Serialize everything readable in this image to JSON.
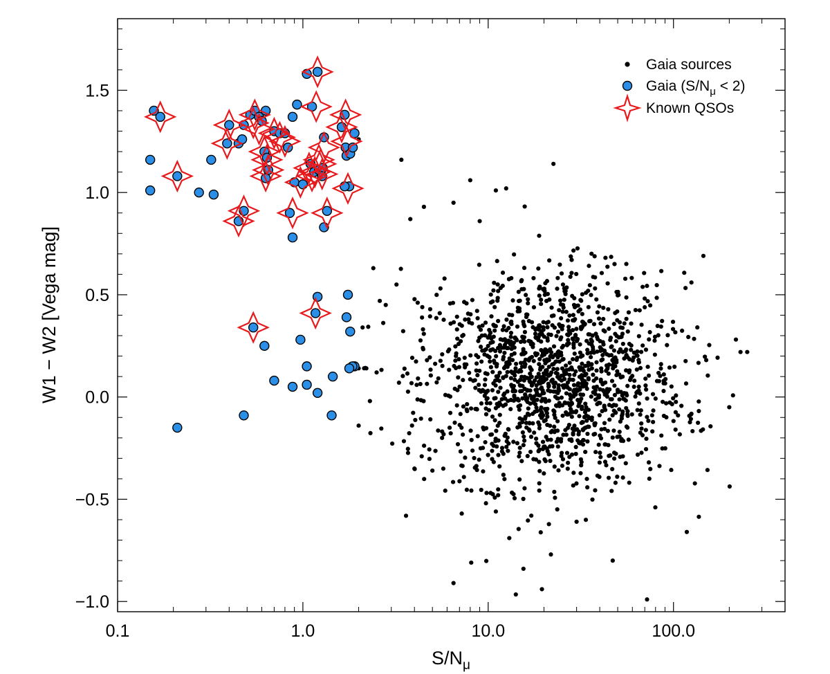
{
  "chart_data": {
    "type": "scatter",
    "xlabel": "S/N",
    "xlabel_sub": "μ",
    "ylabel": "W1 − W2  [Vega mag]",
    "xscale": "log",
    "xlim": [
      0.1,
      400
    ],
    "ylim": [
      -1.05,
      1.85
    ],
    "xticks": [
      {
        "value": 0.1,
        "label": "0.1"
      },
      {
        "value": 1,
        "label": "1.0"
      },
      {
        "value": 10,
        "label": "10.0"
      },
      {
        "value": 100,
        "label": "100.0"
      }
    ],
    "yticks": [
      {
        "value": -1.0,
        "label": "−1.0"
      },
      {
        "value": -0.5,
        "label": "−0.5"
      },
      {
        "value": 0.0,
        "label": "0.0"
      },
      {
        "value": 0.5,
        "label": "0.5"
      },
      {
        "value": 1.0,
        "label": "1.0"
      },
      {
        "value": 1.5,
        "label": "1.5"
      }
    ],
    "grid": false,
    "legend_position": "top-right",
    "legend": [
      {
        "label": "Gaia sources",
        "marker": "black-dot"
      },
      {
        "label": "Gaia (S/N",
        "label_sub": "μ",
        "label_suffix": " < 2)",
        "marker": "blue-circle"
      },
      {
        "label": "Known QSOs",
        "marker": "red-star"
      }
    ],
    "colors": {
      "gaia": "#000000",
      "low_sn_fill": "#2b8fe8",
      "low_sn_edge": "#000000",
      "qso": "#e8191c"
    },
    "series": [
      {
        "name": "Gaia sources",
        "generated": true,
        "count": 1500,
        "x_center_log10": 1.35,
        "x_spread_log10": 0.35,
        "x_min": 2.0,
        "x_max": 250,
        "y_center": 0.08,
        "y_spread": 0.26,
        "points": [
          [
            2.0,
            1.26
          ],
          [
            3.4,
            1.16
          ],
          [
            22.5,
            1.14
          ],
          [
            8.0,
            1.06
          ],
          [
            11.0,
            1.01
          ],
          [
            12.5,
            1.02
          ],
          [
            4.5,
            0.93
          ],
          [
            3.8,
            0.87
          ],
          [
            6.5,
            0.95
          ],
          [
            9.0,
            0.86
          ],
          [
            145,
            0.69
          ],
          [
            125,
            0.56
          ],
          [
            2.4,
            0.63
          ],
          [
            2.6,
            0.47
          ],
          [
            2.8,
            0.45
          ],
          [
            3.2,
            0.55
          ],
          [
            2.1,
            0.34
          ],
          [
            2.2,
            0.14
          ],
          [
            2.0,
            0.14
          ],
          [
            2.5,
            0.12
          ],
          [
            2.3,
            -0.02
          ],
          [
            2.0,
            -0.14
          ],
          [
            3.3,
            0.07
          ],
          [
            4.0,
            -0.35
          ],
          [
            5.0,
            -0.36
          ],
          [
            230,
            0.22
          ],
          [
            250,
            0.22
          ],
          [
            200,
            -0.05
          ],
          [
            118,
            -0.66
          ],
          [
            47,
            -0.8
          ],
          [
            72,
            -0.99
          ],
          [
            19.5,
            -0.94
          ],
          [
            15.5,
            -0.84
          ],
          [
            8.1,
            -0.81
          ],
          [
            6.5,
            -0.91
          ],
          [
            7.2,
            -0.57
          ],
          [
            21.8,
            -0.77
          ],
          [
            30,
            -0.61
          ],
          [
            11,
            -0.56
          ],
          [
            13,
            -0.69
          ]
        ]
      },
      {
        "name": "Gaia (S/Nμ < 2)",
        "points": [
          [
            0.157,
            1.4
          ],
          [
            0.17,
            1.37
          ],
          [
            0.15,
            1.16
          ],
          [
            0.15,
            1.01
          ],
          [
            0.21,
            1.08
          ],
          [
            0.275,
            1.0
          ],
          [
            0.32,
            1.16
          ],
          [
            0.33,
            0.99
          ],
          [
            0.21,
            -0.15
          ],
          [
            0.4,
            1.33
          ],
          [
            0.39,
            1.24
          ],
          [
            0.45,
            1.24
          ],
          [
            0.47,
            1.26
          ],
          [
            0.48,
            1.33
          ],
          [
            0.52,
            1.38
          ],
          [
            0.55,
            1.4
          ],
          [
            0.58,
            1.37
          ],
          [
            0.6,
            1.35
          ],
          [
            0.63,
            1.4
          ],
          [
            0.62,
            1.2
          ],
          [
            0.64,
            1.17
          ],
          [
            0.63,
            1.07
          ],
          [
            0.65,
            1.11
          ],
          [
            0.7,
            1.3
          ],
          [
            0.75,
            1.29
          ],
          [
            0.8,
            1.29
          ],
          [
            0.83,
            1.22
          ],
          [
            0.85,
            0.9
          ],
          [
            0.88,
            1.37
          ],
          [
            0.93,
            1.43
          ],
          [
            0.9,
            1.05
          ],
          [
            0.88,
            0.78
          ],
          [
            1.0,
            1.04
          ],
          [
            1.05,
            1.58
          ],
          [
            1.12,
            1.42
          ],
          [
            1.1,
            1.14
          ],
          [
            1.15,
            1.1
          ],
          [
            1.2,
            1.59
          ],
          [
            1.22,
            1.11
          ],
          [
            1.28,
            1.12
          ],
          [
            1.3,
            1.27
          ],
          [
            1.27,
            1.08
          ],
          [
            1.3,
            0.83
          ],
          [
            1.35,
            0.91
          ],
          [
            1.2,
            0.49
          ],
          [
            1.17,
            0.41
          ],
          [
            1.68,
            1.38
          ],
          [
            1.62,
            1.32
          ],
          [
            1.7,
            1.22
          ],
          [
            1.72,
            1.18
          ],
          [
            1.78,
            1.03
          ],
          [
            1.68,
            1.03
          ],
          [
            1.8,
            1.19
          ],
          [
            1.86,
            1.22
          ],
          [
            1.9,
            1.29
          ],
          [
            1.75,
            0.5
          ],
          [
            1.72,
            0.39
          ],
          [
            1.8,
            0.32
          ],
          [
            1.9,
            0.15
          ],
          [
            1.85,
            0.15
          ],
          [
            1.78,
            0.14
          ],
          [
            0.45,
            0.86
          ],
          [
            0.48,
            0.91
          ],
          [
            0.54,
            0.34
          ],
          [
            0.62,
            0.25
          ],
          [
            0.7,
            0.08
          ],
          [
            0.88,
            0.05
          ],
          [
            0.97,
            0.28
          ],
          [
            1.05,
            0.15
          ],
          [
            1.05,
            0.06
          ],
          [
            1.2,
            0.02
          ],
          [
            1.45,
            0.1
          ],
          [
            1.43,
            -0.09
          ],
          [
            0.48,
            -0.09
          ]
        ]
      },
      {
        "name": "Known QSOs",
        "points": [
          [
            0.17,
            1.37
          ],
          [
            0.21,
            1.08
          ],
          [
            0.4,
            1.33
          ],
          [
            0.39,
            1.24
          ],
          [
            0.45,
            0.86
          ],
          [
            0.48,
            0.91
          ],
          [
            0.54,
            1.34
          ],
          [
            0.55,
            1.38
          ],
          [
            0.58,
            1.31
          ],
          [
            0.62,
            1.2
          ],
          [
            0.64,
            1.16
          ],
          [
            0.63,
            1.08
          ],
          [
            0.65,
            1.11
          ],
          [
            0.7,
            1.29
          ],
          [
            0.75,
            1.27
          ],
          [
            0.8,
            1.25
          ],
          [
            0.88,
            0.9
          ],
          [
            0.97,
            1.05
          ],
          [
            1.08,
            1.12
          ],
          [
            1.12,
            1.08
          ],
          [
            1.16,
            1.1
          ],
          [
            1.18,
            1.42
          ],
          [
            1.2,
            1.59
          ],
          [
            1.22,
            1.16
          ],
          [
            1.25,
            1.14
          ],
          [
            1.27,
            1.09
          ],
          [
            1.3,
            1.22
          ],
          [
            1.35,
            0.9
          ],
          [
            1.17,
            0.41
          ],
          [
            1.62,
            1.32
          ],
          [
            1.7,
            1.38
          ],
          [
            1.72,
            1.25
          ],
          [
            1.75,
            1.02
          ],
          [
            0.54,
            0.34
          ]
        ]
      }
    ]
  }
}
